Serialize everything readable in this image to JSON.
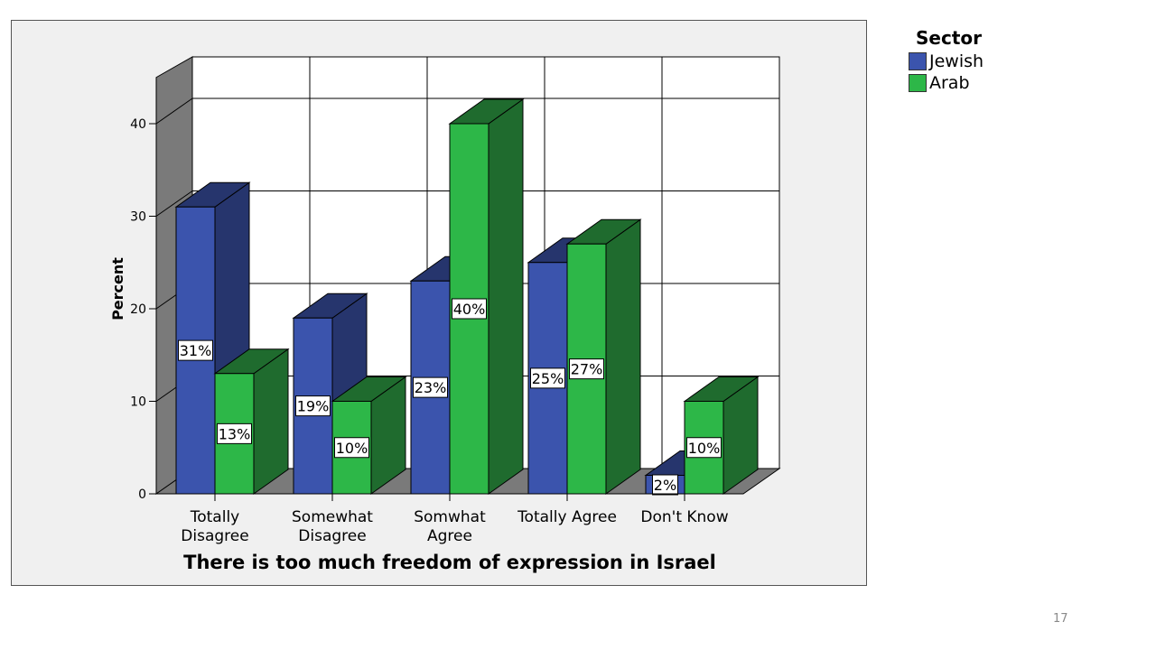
{
  "slide": {
    "page_number": "17"
  },
  "legend": {
    "title": "Sector",
    "items": [
      {
        "label": "Jewish",
        "color": "#3b54ad"
      },
      {
        "label": "Arab",
        "color": "#2db748"
      }
    ]
  },
  "chart_data": {
    "type": "bar",
    "style": "3d-clustered",
    "title": "",
    "xlabel": "There is too much freedom of expression in Israel",
    "ylabel": "Percent",
    "ylim": [
      0,
      45
    ],
    "yticks": [
      "0",
      "10",
      "20",
      "30",
      "40"
    ],
    "grid": true,
    "legend_position": "right",
    "categories": [
      [
        "Totally",
        "Disagree"
      ],
      [
        "Somewhat",
        "Disagree"
      ],
      [
        "Somwhat",
        "Agree"
      ],
      [
        "Totally Agree"
      ],
      [
        "Don't Know"
      ]
    ],
    "series": [
      {
        "name": "Jewish",
        "color": "#3b54ad",
        "side_color": "#26356d",
        "values": [
          31,
          19,
          23,
          25,
          2
        ],
        "labels": [
          "31%",
          "19%",
          "23%",
          "25%",
          "2%"
        ]
      },
      {
        "name": "Arab",
        "color": "#2db748",
        "side_color": "#1f6b2e",
        "values": [
          13,
          10,
          40,
          27,
          10
        ],
        "labels": [
          "13%",
          "10%",
          "40%",
          "27%",
          "10%"
        ]
      }
    ]
  }
}
